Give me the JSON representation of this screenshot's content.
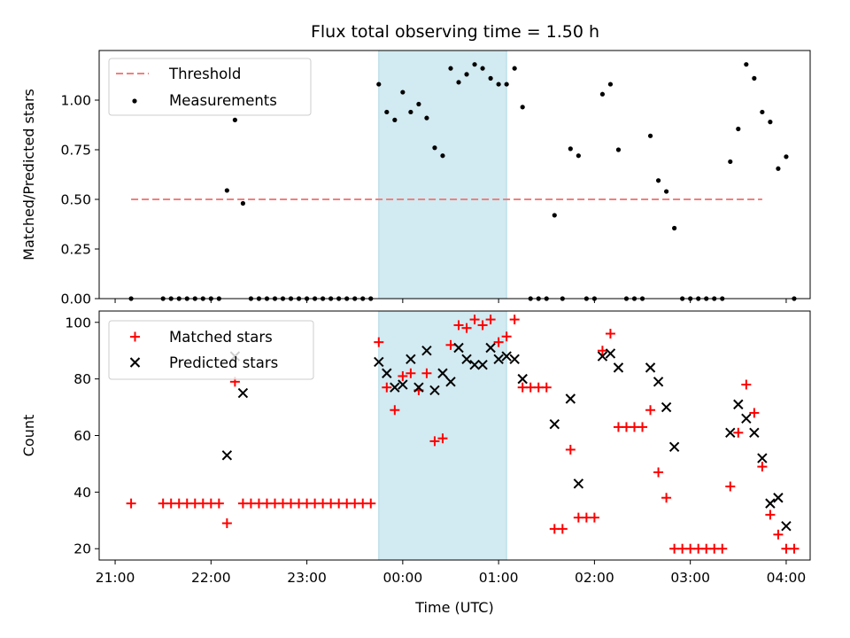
{
  "figure": {
    "title": "Flux total observing time = 1.50 h",
    "xlabel": "Time (UTC)",
    "shade_start": "23:45",
    "shade_end": "01:05",
    "shade_color": "#add8e6"
  },
  "chart_data": [
    {
      "type": "scatter",
      "ylabel": "Matched/Predicted stars",
      "ylim": [
        0,
        1.25
      ],
      "yticks": [
        "0.00",
        "0.25",
        "0.50",
        "0.75",
        "1.00"
      ],
      "ytick_values": [
        0,
        0.25,
        0.5,
        0.75,
        1.0
      ],
      "legend_placement": "top-left",
      "threshold": {
        "name": "Threshold",
        "value": 0.5,
        "x_range": [
          "21:10",
          "03:45"
        ],
        "color": "#f08080"
      },
      "series": [
        {
          "name": "Measurements",
          "marker": "dot",
          "color": "#000000",
          "points": [
            [
              "21:10",
              0
            ],
            [
              "21:30",
              0
            ],
            [
              "21:35",
              0
            ],
            [
              "21:40",
              0
            ],
            [
              "21:45",
              0
            ],
            [
              "21:50",
              0
            ],
            [
              "21:55",
              0
            ],
            [
              "22:00",
              0
            ],
            [
              "22:05",
              0
            ],
            [
              "22:10",
              0.545
            ],
            [
              "22:15",
              0.9
            ],
            [
              "22:20",
              0.48
            ],
            [
              "22:25",
              0
            ],
            [
              "22:30",
              0
            ],
            [
              "22:35",
              0
            ],
            [
              "22:40",
              0
            ],
            [
              "22:45",
              0
            ],
            [
              "22:50",
              0
            ],
            [
              "22:55",
              0
            ],
            [
              "23:00",
              0
            ],
            [
              "23:05",
              0
            ],
            [
              "23:10",
              0
            ],
            [
              "23:15",
              0
            ],
            [
              "23:20",
              0
            ],
            [
              "23:25",
              0
            ],
            [
              "23:30",
              0
            ],
            [
              "23:35",
              0
            ],
            [
              "23:40",
              0
            ],
            [
              "23:45",
              1.08
            ],
            [
              "23:50",
              0.94
            ],
            [
              "23:55",
              0.9
            ],
            [
              "00:00",
              1.04
            ],
            [
              "00:05",
              0.94
            ],
            [
              "00:10",
              0.98
            ],
            [
              "00:15",
              0.91
            ],
            [
              "00:20",
              0.76
            ],
            [
              "00:25",
              0.72
            ],
            [
              "00:30",
              1.16
            ],
            [
              "00:35",
              1.09
            ],
            [
              "00:40",
              1.13
            ],
            [
              "00:45",
              1.18
            ],
            [
              "00:50",
              1.16
            ],
            [
              "00:55",
              1.11
            ],
            [
              "01:00",
              1.08
            ],
            [
              "01:05",
              1.08
            ],
            [
              "01:10",
              1.16
            ],
            [
              "01:15",
              0.965
            ],
            [
              "01:20",
              0
            ],
            [
              "01:25",
              0
            ],
            [
              "01:30",
              0
            ],
            [
              "01:35",
              0.42
            ],
            [
              "01:40",
              0
            ],
            [
              "01:45",
              0.755
            ],
            [
              "01:50",
              0.72
            ],
            [
              "01:55",
              0
            ],
            [
              "02:00",
              0
            ],
            [
              "02:05",
              1.03
            ],
            [
              "02:10",
              1.08
            ],
            [
              "02:15",
              0.75
            ],
            [
              "02:20",
              0
            ],
            [
              "02:25",
              0
            ],
            [
              "02:30",
              0
            ],
            [
              "02:35",
              0.82
            ],
            [
              "02:40",
              0.595
            ],
            [
              "02:45",
              0.54
            ],
            [
              "02:50",
              0.355
            ],
            [
              "02:55",
              0
            ],
            [
              "03:00",
              0
            ],
            [
              "03:05",
              0
            ],
            [
              "03:10",
              0
            ],
            [
              "03:15",
              0
            ],
            [
              "03:20",
              0
            ],
            [
              "03:25",
              0.69
            ],
            [
              "03:30",
              0.855
            ],
            [
              "03:35",
              1.18
            ],
            [
              "03:40",
              1.11
            ],
            [
              "03:45",
              0.94
            ],
            [
              "03:50",
              0.89
            ],
            [
              "03:55",
              0.655
            ],
            [
              "04:00",
              0.715
            ],
            [
              "04:05",
              0
            ]
          ]
        }
      ]
    },
    {
      "type": "scatter",
      "ylabel": "Count",
      "ylim": [
        16,
        104
      ],
      "yticks": [
        "20",
        "40",
        "60",
        "80",
        "100"
      ],
      "ytick_values": [
        20,
        40,
        60,
        80,
        100
      ],
      "legend_placement": "top-left",
      "series": [
        {
          "name": "Matched stars",
          "marker": "plus",
          "color": "#ff0000",
          "points": [
            [
              "21:10",
              36
            ],
            [
              "21:30",
              36
            ],
            [
              "21:35",
              36
            ],
            [
              "21:40",
              36
            ],
            [
              "21:45",
              36
            ],
            [
              "21:50",
              36
            ],
            [
              "21:55",
              36
            ],
            [
              "22:00",
              36
            ],
            [
              "22:05",
              36
            ],
            [
              "22:10",
              29
            ],
            [
              "22:15",
              79
            ],
            [
              "22:20",
              36
            ],
            [
              "22:25",
              36
            ],
            [
              "22:30",
              36
            ],
            [
              "22:35",
              36
            ],
            [
              "22:40",
              36
            ],
            [
              "22:45",
              36
            ],
            [
              "22:50",
              36
            ],
            [
              "22:55",
              36
            ],
            [
              "23:00",
              36
            ],
            [
              "23:05",
              36
            ],
            [
              "23:10",
              36
            ],
            [
              "23:15",
              36
            ],
            [
              "23:20",
              36
            ],
            [
              "23:25",
              36
            ],
            [
              "23:30",
              36
            ],
            [
              "23:35",
              36
            ],
            [
              "23:40",
              36
            ],
            [
              "23:45",
              93
            ],
            [
              "23:50",
              77
            ],
            [
              "23:55",
              69
            ],
            [
              "00:00",
              81
            ],
            [
              "00:05",
              82
            ],
            [
              "00:10",
              76
            ],
            [
              "00:15",
              82
            ],
            [
              "00:20",
              58
            ],
            [
              "00:25",
              59
            ],
            [
              "00:30",
              92
            ],
            [
              "00:35",
              99
            ],
            [
              "00:40",
              98
            ],
            [
              "00:45",
              101
            ],
            [
              "00:50",
              99
            ],
            [
              "00:55",
              101
            ],
            [
              "01:00",
              93
            ],
            [
              "01:05",
              95
            ],
            [
              "01:10",
              101
            ],
            [
              "01:15",
              77
            ],
            [
              "01:20",
              77
            ],
            [
              "01:25",
              77
            ],
            [
              "01:30",
              77
            ],
            [
              "01:35",
              27
            ],
            [
              "01:40",
              27
            ],
            [
              "01:45",
              55
            ],
            [
              "01:50",
              31
            ],
            [
              "01:55",
              31
            ],
            [
              "02:00",
              31
            ],
            [
              "02:05",
              90
            ],
            [
              "02:10",
              96
            ],
            [
              "02:15",
              63
            ],
            [
              "02:20",
              63
            ],
            [
              "02:25",
              63
            ],
            [
              "02:30",
              63
            ],
            [
              "02:35",
              69
            ],
            [
              "02:40",
              47
            ],
            [
              "02:45",
              38
            ],
            [
              "02:50",
              20
            ],
            [
              "02:55",
              20
            ],
            [
              "03:00",
              20
            ],
            [
              "03:05",
              20
            ],
            [
              "03:10",
              20
            ],
            [
              "03:15",
              20
            ],
            [
              "03:20",
              20
            ],
            [
              "03:25",
              42
            ],
            [
              "03:30",
              61
            ],
            [
              "03:35",
              78
            ],
            [
              "03:40",
              68
            ],
            [
              "03:45",
              49
            ],
            [
              "03:50",
              32
            ],
            [
              "03:55",
              25
            ],
            [
              "04:00",
              20
            ],
            [
              "04:05",
              20
            ]
          ]
        },
        {
          "name": "Predicted stars",
          "marker": "cross",
          "color": "#000000",
          "points": [
            [
              "22:10",
              53
            ],
            [
              "22:15",
              88
            ],
            [
              "22:20",
              75
            ],
            [
              "23:45",
              86
            ],
            [
              "23:50",
              82
            ],
            [
              "23:55",
              77
            ],
            [
              "00:00",
              78
            ],
            [
              "00:05",
              87
            ],
            [
              "00:10",
              77
            ],
            [
              "00:15",
              90
            ],
            [
              "00:20",
              76
            ],
            [
              "00:25",
              82
            ],
            [
              "00:30",
              79
            ],
            [
              "00:35",
              91
            ],
            [
              "00:40",
              87
            ],
            [
              "00:45",
              85
            ],
            [
              "00:50",
              85
            ],
            [
              "00:55",
              91
            ],
            [
              "01:00",
              87
            ],
            [
              "01:05",
              88
            ],
            [
              "01:10",
              87
            ],
            [
              "01:15",
              80
            ],
            [
              "01:35",
              64
            ],
            [
              "01:45",
              73
            ],
            [
              "01:50",
              43
            ],
            [
              "02:05",
              88
            ],
            [
              "02:10",
              89
            ],
            [
              "02:15",
              84
            ],
            [
              "02:35",
              84
            ],
            [
              "02:40",
              79
            ],
            [
              "02:45",
              70
            ],
            [
              "02:50",
              56
            ],
            [
              "03:25",
              61
            ],
            [
              "03:30",
              71
            ],
            [
              "03:35",
              66
            ],
            [
              "03:40",
              61
            ],
            [
              "03:45",
              52
            ],
            [
              "03:50",
              36
            ],
            [
              "03:55",
              38
            ],
            [
              "04:00",
              28
            ]
          ]
        }
      ]
    }
  ],
  "xaxis": {
    "tick_labels": [
      "21:00",
      "22:00",
      "23:00",
      "00:00",
      "01:00",
      "02:00",
      "03:00",
      "04:00"
    ]
  }
}
